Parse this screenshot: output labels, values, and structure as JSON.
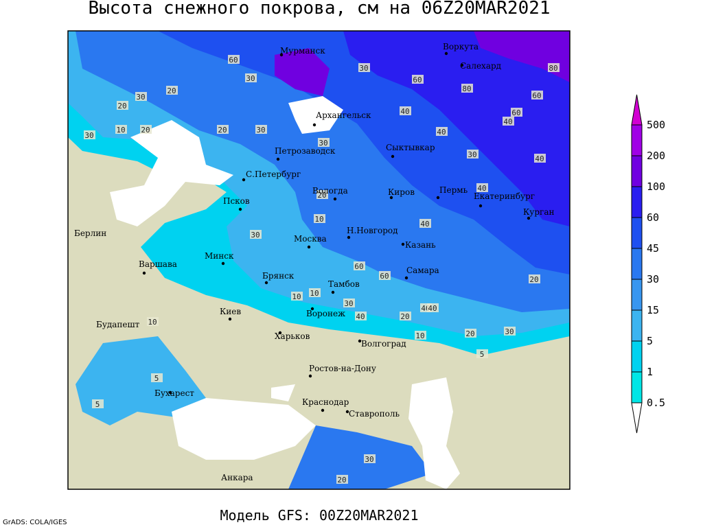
{
  "header": {
    "title": "Высота снежного покрова, см на 06Z20MAR2021"
  },
  "cities": [
    "Мурманск",
    "Воркута",
    "Салехард",
    "Архангельск",
    "Петрозаводск",
    "Сыктывкар",
    "С.Петербург",
    "Вологда",
    "Киров",
    "Пермь",
    "Екатеринбург",
    "Курган",
    "Псков",
    "Н.Новгород",
    "Казань",
    "Москва",
    "Берлин",
    "Варшава",
    "Минск",
    "Брянск",
    "Тамбов",
    "Самара",
    "Воронеж",
    "Киев",
    "Харьков",
    "Волгоград",
    "Будапешт",
    "Ростов-на-Дону",
    "Бухарест",
    "Краснодар",
    "Ставрополь",
    "Анкара"
  ],
  "contour_labels": [
    60,
    30,
    80,
    60,
    30,
    20,
    30,
    20,
    10,
    20,
    30,
    40,
    30,
    40,
    40,
    60,
    80,
    60,
    40,
    30,
    40,
    20,
    10,
    40,
    30,
    60,
    60,
    40,
    10,
    30,
    20,
    20,
    10,
    40,
    30,
    20,
    10,
    5,
    30,
    20,
    5,
    10,
    5,
    30,
    40,
    20
  ],
  "legend": {
    "levels": [
      500,
      200,
      100,
      60,
      45,
      30,
      15,
      5,
      1,
      0.5
    ],
    "colors": [
      "#d200d2",
      "#a000e6",
      "#7000e0",
      "#2a1ef0",
      "#1e50f0",
      "#2a78f0",
      "#3896f0",
      "#3cb4f0",
      "#00d2f0",
      "#00e6e6",
      "#a0f0f0",
      "#ffffff"
    ]
  },
  "footer": {
    "model": "Модель GFS: 00Z20MAR2021",
    "credit": "GrADS: COLA/IGES"
  }
}
